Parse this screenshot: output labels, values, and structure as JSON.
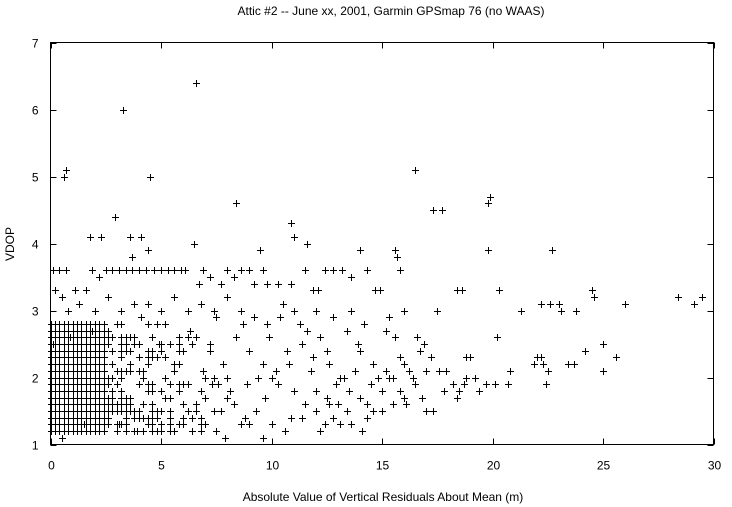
{
  "chart_data": {
    "type": "scatter",
    "title": "Attic #2 -- June xx, 2001, Garmin GPSmap 76 (no WAAS)",
    "xlabel": "Absolute Value of Vertical Residuals About Mean  (m)",
    "ylabel": "VDOP",
    "xlim": [
      0,
      30
    ],
    "ylim": [
      1,
      7
    ],
    "xticks": [
      "0",
      "5",
      "10",
      "15",
      "20",
      "25",
      "30"
    ],
    "yticks": [
      "1",
      "2",
      "3",
      "4",
      "5",
      "6",
      "7"
    ],
    "grid": false,
    "legend": "none",
    "marker": "plus",
    "series": [
      {
        "points": [
          [
            0.6,
            5.0
          ],
          [
            0.7,
            5.1
          ],
          [
            3.3,
            6.0
          ],
          [
            6.6,
            6.4
          ],
          [
            4.5,
            5.0
          ],
          [
            2.9,
            4.4
          ],
          [
            1.8,
            4.1
          ],
          [
            2.3,
            4.1
          ],
          [
            3.6,
            4.1
          ],
          [
            4.1,
            4.1
          ],
          [
            4.4,
            3.9
          ],
          [
            3.7,
            3.8
          ],
          [
            6.5,
            4.0
          ],
          [
            8.4,
            4.6
          ],
          [
            9.5,
            3.9
          ],
          [
            10.9,
            4.3
          ],
          [
            11.0,
            4.1
          ],
          [
            11.6,
            4.0
          ],
          [
            14.0,
            3.9
          ],
          [
            15.6,
            3.9
          ],
          [
            15.7,
            3.8
          ],
          [
            16.5,
            5.1
          ],
          [
            17.3,
            4.5
          ],
          [
            17.7,
            4.5
          ],
          [
            19.8,
            4.6
          ],
          [
            19.9,
            4.7
          ],
          [
            19.8,
            3.9
          ],
          [
            22.7,
            3.9
          ],
          [
            24.5,
            3.3
          ],
          [
            24.6,
            3.2
          ],
          [
            26.0,
            3.1
          ],
          [
            28.4,
            3.2
          ],
          [
            29.1,
            3.1
          ],
          [
            29.5,
            3.2
          ],
          [
            22.2,
            3.1
          ],
          [
            22.6,
            3.1
          ],
          [
            23.0,
            3.1
          ],
          [
            21.3,
            3.0
          ],
          [
            23.1,
            3.0
          ],
          [
            23.8,
            3.0
          ],
          [
            20.3,
            3.3
          ],
          [
            18.4,
            3.3
          ],
          [
            18.6,
            3.3
          ],
          [
            17.5,
            3.0
          ],
          [
            16.0,
            3.0
          ],
          [
            15.3,
            2.9
          ],
          [
            20.2,
            2.6
          ],
          [
            24.2,
            2.4
          ],
          [
            25.0,
            2.5
          ],
          [
            22.0,
            2.3
          ],
          [
            22.2,
            2.3
          ],
          [
            25.6,
            2.3
          ],
          [
            21.9,
            2.2
          ],
          [
            22.3,
            2.2
          ],
          [
            23.4,
            2.2
          ],
          [
            23.7,
            2.2
          ],
          [
            20.8,
            2.1
          ],
          [
            22.5,
            2.1
          ],
          [
            25.0,
            2.1
          ],
          [
            22.4,
            1.9
          ],
          [
            19.7,
            1.9
          ],
          [
            20.1,
            1.9
          ],
          [
            20.7,
            1.9
          ],
          [
            19.4,
            1.8
          ],
          [
            18.5,
            1.8
          ],
          [
            18.4,
            1.7
          ],
          [
            18.8,
            2.3
          ],
          [
            19.0,
            2.3
          ],
          [
            19.2,
            2.0
          ],
          [
            18.8,
            2.0
          ],
          [
            18.7,
            1.9
          ],
          [
            17.0,
            1.5
          ],
          [
            17.3,
            1.5
          ],
          [
            16.9,
            2.5
          ],
          [
            16.6,
            2.6
          ],
          [
            16.0,
            2.2
          ],
          [
            15.5,
            2.0
          ],
          [
            15.0,
            1.5
          ],
          [
            14.6,
            1.5
          ],
          [
            14.3,
            1.6
          ],
          [
            14.1,
            1.2
          ],
          [
            13.6,
            1.3
          ],
          [
            13.1,
            1.3
          ],
          [
            12.8,
            1.4
          ],
          [
            12.4,
            1.3
          ],
          [
            12.2,
            1.2
          ],
          [
            10.6,
            1.2
          ],
          [
            10.0,
            1.3
          ],
          [
            9.0,
            1.3
          ],
          [
            8.6,
            1.3
          ],
          [
            7.9,
            1.1
          ],
          [
            0.5,
            1.1
          ],
          [
            13.2,
            3.6
          ],
          [
            13.6,
            3.5
          ],
          [
            14.3,
            3.6
          ],
          [
            14.7,
            3.3
          ],
          [
            12.4,
            3.6
          ],
          [
            12.8,
            3.6
          ],
          [
            11.9,
            3.3
          ],
          [
            10.9,
            3.4
          ],
          [
            9.8,
            3.4
          ],
          [
            10.3,
            3.4
          ],
          [
            9.2,
            3.4
          ],
          [
            9.0,
            3.6
          ],
          [
            9.6,
            3.6
          ],
          [
            8.0,
            3.6
          ],
          [
            8.3,
            3.5
          ],
          [
            8.6,
            3.6
          ],
          [
            7.2,
            3.5
          ],
          [
            7.7,
            3.4
          ],
          [
            6.7,
            3.4
          ],
          [
            6.9,
            3.6
          ],
          [
            5.6,
            3.6
          ],
          [
            5.9,
            3.6
          ],
          [
            6.1,
            3.6
          ],
          [
            5.3,
            3.6
          ],
          [
            5.0,
            3.6
          ],
          [
            4.7,
            3.6
          ],
          [
            4.3,
            3.6
          ],
          [
            4.0,
            3.6
          ],
          [
            3.7,
            3.6
          ],
          [
            3.4,
            3.6
          ],
          [
            3.1,
            3.6
          ],
          [
            2.8,
            3.6
          ],
          [
            2.5,
            3.6
          ],
          [
            2.2,
            3.5
          ],
          [
            1.9,
            3.6
          ],
          [
            1.6,
            3.3
          ],
          [
            1.1,
            3.3
          ],
          [
            0.7,
            3.6
          ],
          [
            0.4,
            3.6
          ],
          [
            0.1,
            3.6
          ],
          [
            0.2,
            3.3
          ],
          [
            0.5,
            3.2
          ],
          [
            0.8,
            3.0
          ],
          [
            1.3,
            3.1
          ],
          [
            2.0,
            3.0
          ],
          [
            2.6,
            3.2
          ],
          [
            3.2,
            3.0
          ],
          [
            3.8,
            3.1
          ],
          [
            4.4,
            3.1
          ],
          [
            5.0,
            3.0
          ],
          [
            5.6,
            3.2
          ],
          [
            6.2,
            3.0
          ],
          [
            6.8,
            3.1
          ],
          [
            7.4,
            3.0
          ],
          [
            8.0,
            3.2
          ],
          [
            8.6,
            3.0
          ],
          [
            9.2,
            2.9
          ],
          [
            9.8,
            2.8
          ],
          [
            10.4,
            2.9
          ],
          [
            11.0,
            3.0
          ],
          [
            11.6,
            2.7
          ],
          [
            12.2,
            2.6
          ],
          [
            12.8,
            2.9
          ],
          [
            13.4,
            2.7
          ],
          [
            14.0,
            2.4
          ],
          [
            14.6,
            2.2
          ],
          [
            15.2,
            2.1
          ],
          [
            15.8,
            2.3
          ],
          [
            16.4,
            2.0
          ],
          [
            17.0,
            2.1
          ],
          [
            17.6,
            2.1
          ],
          [
            18.2,
            1.9
          ],
          [
            13.1,
            2.0
          ],
          [
            12.6,
            2.2
          ],
          [
            11.9,
            2.3
          ],
          [
            11.4,
            2.5
          ],
          [
            10.7,
            2.4
          ],
          [
            10.2,
            2.1
          ],
          [
            9.6,
            2.2
          ],
          [
            9.0,
            2.4
          ],
          [
            8.4,
            2.6
          ],
          [
            7.8,
            2.2
          ],
          [
            7.2,
            2.4
          ],
          [
            6.6,
            2.6
          ],
          [
            11.0,
            1.8
          ],
          [
            11.5,
            1.6
          ],
          [
            12.0,
            1.8
          ],
          [
            12.5,
            1.7
          ],
          [
            13.0,
            1.6
          ],
          [
            13.5,
            1.8
          ],
          [
            14.0,
            1.7
          ],
          [
            14.5,
            1.9
          ],
          [
            15.0,
            1.8
          ],
          [
            15.5,
            1.6
          ],
          [
            16.0,
            1.7
          ],
          [
            16.5,
            1.9
          ],
          [
            14.8,
            2.0
          ],
          [
            15.3,
            2.0
          ],
          [
            16.2,
            2.1
          ],
          [
            13.8,
            2.1
          ],
          [
            13.3,
            2.0
          ],
          [
            12.9,
            1.9
          ],
          [
            14.2,
            2.8
          ],
          [
            15.6,
            2.6
          ],
          [
            16.7,
            2.4
          ],
          [
            17.2,
            2.3
          ],
          [
            17.9,
            2.1
          ],
          [
            13.6,
            3.0
          ],
          [
            14.9,
            3.3
          ],
          [
            15.8,
            3.6
          ],
          [
            12.1,
            3.3
          ],
          [
            11.5,
            3.6
          ],
          [
            12.0,
            3.0
          ],
          [
            11.3,
            2.8
          ],
          [
            10.5,
            3.1
          ],
          [
            15.2,
            2.7
          ],
          [
            13.9,
            2.5
          ],
          [
            12.5,
            2.4
          ],
          [
            11.8,
            2.1
          ],
          [
            10.8,
            2.2
          ],
          [
            10.3,
            1.9
          ],
          [
            9.7,
            1.7
          ],
          [
            9.3,
            1.5
          ],
          [
            8.8,
            1.4
          ],
          [
            8.3,
            1.6
          ],
          [
            7.7,
            1.5
          ],
          [
            10.9,
            1.4
          ],
          [
            11.4,
            1.4
          ],
          [
            12.0,
            1.5
          ],
          [
            12.6,
            1.6
          ],
          [
            13.4,
            1.5
          ],
          [
            14.3,
            1.4
          ],
          [
            15.8,
            1.8
          ],
          [
            16.8,
            1.7
          ],
          [
            17.8,
            1.8
          ],
          [
            16.1,
            1.6
          ],
          [
            9.9,
            2.6
          ],
          [
            8.7,
            2.8
          ],
          [
            7.5,
            2.9
          ],
          [
            6.3,
            2.7
          ],
          [
            5.2,
            2.8
          ],
          [
            4.1,
            2.9
          ],
          [
            3.0,
            2.8
          ],
          [
            1.9,
            2.7
          ],
          [
            0.9,
            2.6
          ],
          [
            0.1,
            2.5
          ],
          [
            4.9,
            2.5
          ],
          [
            5.8,
            2.4
          ],
          [
            6.9,
            2.1
          ],
          [
            7.3,
            1.9
          ],
          [
            8.1,
            1.8
          ],
          [
            8.9,
            1.9
          ],
          [
            9.4,
            2.0
          ],
          [
            10.0,
            2.0
          ],
          [
            7.0,
            1.7
          ],
          [
            6.2,
            1.5
          ],
          [
            5.4,
            1.4
          ],
          [
            4.6,
            1.3
          ],
          [
            3.9,
            1.2
          ],
          [
            3.1,
            1.3
          ],
          [
            2.4,
            1.2
          ],
          [
            1.5,
            1.3
          ],
          [
            0.8,
            1.2
          ],
          [
            6.8,
            1.3
          ],
          [
            7.5,
            1.2
          ],
          [
            9.6,
            1.1
          ]
        ]
      }
    ],
    "dense_region": {
      "x_from": 0,
      "x_to": 8,
      "y_from": 1.2,
      "y_to": 2.8,
      "x_step": 0.2,
      "y_step": 0.1,
      "thinning_start": 2.5
    }
  }
}
